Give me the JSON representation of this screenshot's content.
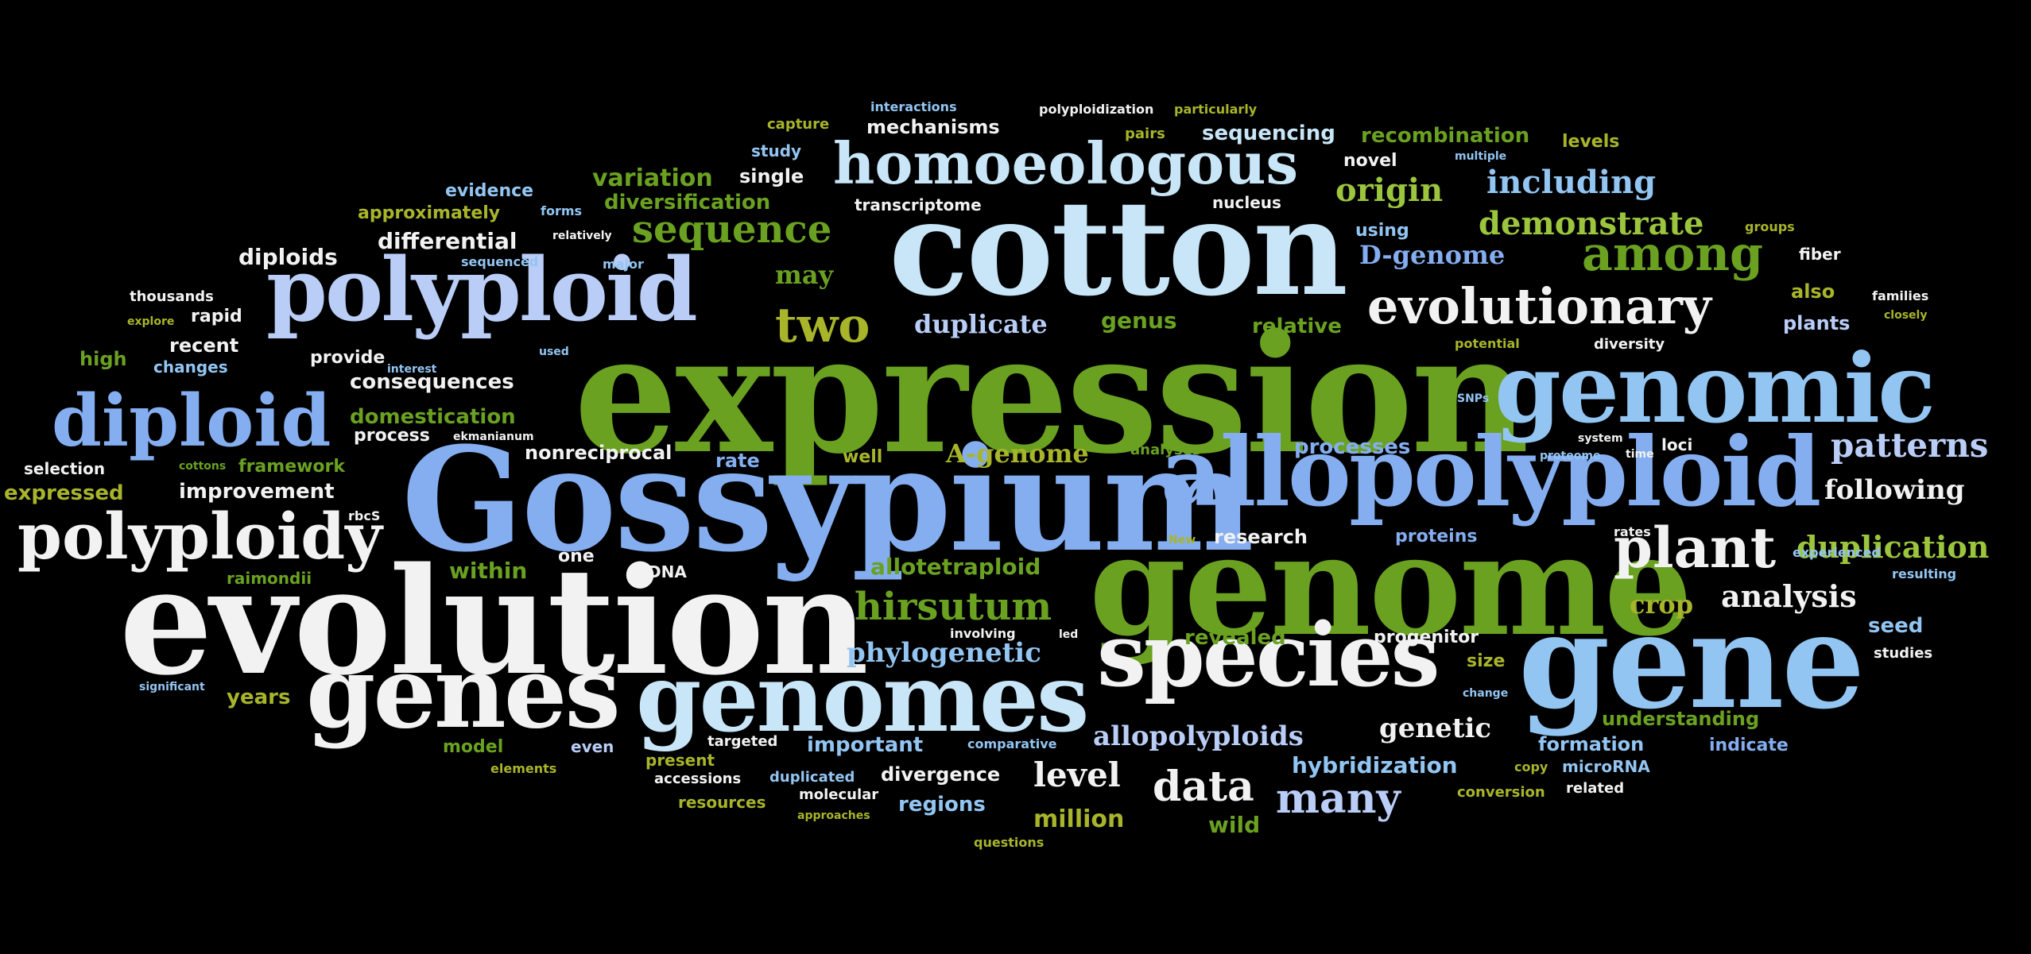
{
  "words": [
    {
      "text": "expression",
      "size": 205,
      "color": "green"
    },
    {
      "text": "Gossypium",
      "size": 180,
      "color": "blue"
    },
    {
      "text": "evolution",
      "size": 185,
      "color": "white"
    },
    {
      "text": "genome",
      "size": 175,
      "color": "green"
    },
    {
      "text": "cotton",
      "size": 165,
      "color": "cyan"
    },
    {
      "text": "gene",
      "size": 165,
      "color": "lblue"
    },
    {
      "text": "genomic",
      "size": 120,
      "color": "lblue"
    },
    {
      "text": "allopolyploid",
      "size": 120,
      "color": "blue"
    },
    {
      "text": "polyploid",
      "size": 110,
      "color": "peri"
    },
    {
      "text": "genes",
      "size": 125,
      "color": "white"
    },
    {
      "text": "genomes",
      "size": 118,
      "color": "cyan"
    },
    {
      "text": "species",
      "size": 110,
      "color": "white"
    },
    {
      "text": "diploid",
      "size": 90,
      "color": "blue"
    },
    {
      "text": "polyploidy",
      "size": 80,
      "color": "white"
    },
    {
      "text": "homoeologous",
      "size": 72,
      "color": "cyan"
    },
    {
      "text": "evolutionary",
      "size": 62,
      "color": "white"
    },
    {
      "text": "plant",
      "size": 70,
      "color": "white"
    },
    {
      "text": "among",
      "size": 60,
      "color": "green"
    },
    {
      "text": "two",
      "size": 60,
      "color": "olive"
    },
    {
      "text": "hirsutum",
      "size": 48,
      "color": "green"
    },
    {
      "text": "sequence",
      "size": 48,
      "color": "green"
    },
    {
      "text": "data",
      "size": 52,
      "color": "white"
    },
    {
      "text": "many",
      "size": 52,
      "color": "peri"
    },
    {
      "text": "patterns",
      "size": 42,
      "color": "peri"
    },
    {
      "text": "including",
      "size": 40,
      "color": "lblue"
    },
    {
      "text": "demonstrate",
      "size": 40,
      "color": "lgreen"
    },
    {
      "text": "origin",
      "size": 40,
      "color": "lgreen"
    },
    {
      "text": "duplication",
      "size": 38,
      "color": "lgreen"
    },
    {
      "text": "following",
      "size": 34,
      "color": "white"
    },
    {
      "text": "analysis",
      "size": 38,
      "color": "white"
    },
    {
      "text": "phylogenetic",
      "size": 34,
      "color": "lblue"
    },
    {
      "text": "allopolyploids",
      "size": 34,
      "color": "peri"
    },
    {
      "text": "genetic",
      "size": 34,
      "color": "white"
    },
    {
      "text": "level",
      "size": 42,
      "color": "white"
    },
    {
      "text": "duplicate",
      "size": 32,
      "color": "peri"
    },
    {
      "text": "D-genome",
      "size": 32,
      "color": "blue"
    },
    {
      "text": "A-genome",
      "size": 32,
      "color": "olive"
    },
    {
      "text": "allotetraploid",
      "size": 28,
      "color": "green"
    },
    {
      "text": "within",
      "size": 28,
      "color": "green"
    },
    {
      "text": "million",
      "size": 30,
      "color": "olive"
    },
    {
      "text": "crop",
      "size": 32,
      "color": "olive"
    },
    {
      "text": "may",
      "size": 32,
      "color": "green"
    },
    {
      "text": "genus",
      "size": 28,
      "color": "green"
    },
    {
      "text": "relative",
      "size": 26,
      "color": "green"
    },
    {
      "text": "variation",
      "size": 30,
      "color": "green"
    },
    {
      "text": "diversification",
      "size": 26,
      "color": "green"
    },
    {
      "text": "differential",
      "size": 28,
      "color": "white"
    },
    {
      "text": "diploids",
      "size": 28,
      "color": "white"
    },
    {
      "text": "mechanisms",
      "size": 24,
      "color": "white"
    },
    {
      "text": "sequencing",
      "size": 26,
      "color": "cyan"
    },
    {
      "text": "recombination",
      "size": 26,
      "color": "green"
    },
    {
      "text": "levels",
      "size": 22,
      "color": "olive"
    },
    {
      "text": "novel",
      "size": 22,
      "color": "white"
    },
    {
      "text": "nucleus",
      "size": 20,
      "color": "white"
    },
    {
      "text": "transcriptome",
      "size": 20,
      "color": "white"
    },
    {
      "text": "single",
      "size": 24,
      "color": "white"
    },
    {
      "text": "study",
      "size": 20,
      "color": "lblue"
    },
    {
      "text": "capture",
      "size": 18,
      "color": "olive"
    },
    {
      "text": "interactions",
      "size": 16,
      "color": "lblue"
    },
    {
      "text": "polyploidization",
      "size": 16,
      "color": "white"
    },
    {
      "text": "particularly",
      "size": 16,
      "color": "olive"
    },
    {
      "text": "pairs",
      "size": 18,
      "color": "olive"
    },
    {
      "text": "multiple",
      "size": 14,
      "color": "lblue"
    },
    {
      "text": "evidence",
      "size": 22,
      "color": "lblue"
    },
    {
      "text": "approximately",
      "size": 22,
      "color": "olive"
    },
    {
      "text": "forms",
      "size": 16,
      "color": "lblue"
    },
    {
      "text": "relatively",
      "size": 14,
      "color": "white"
    },
    {
      "text": "sequenced",
      "size": 16,
      "color": "lblue"
    },
    {
      "text": "major",
      "size": 16,
      "color": "lblue"
    },
    {
      "text": "using",
      "size": 22,
      "color": "lblue"
    },
    {
      "text": "groups",
      "size": 16,
      "color": "olive"
    },
    {
      "text": "fiber",
      "size": 20,
      "color": "white"
    },
    {
      "text": "also",
      "size": 24,
      "color": "olive"
    },
    {
      "text": "families",
      "size": 16,
      "color": "white"
    },
    {
      "text": "closely",
      "size": 14,
      "color": "olive"
    },
    {
      "text": "plants",
      "size": 24,
      "color": "peri"
    },
    {
      "text": "diversity",
      "size": 18,
      "color": "white"
    },
    {
      "text": "potential",
      "size": 16,
      "color": "olive"
    },
    {
      "text": "thousands",
      "size": 18,
      "color": "white"
    },
    {
      "text": "explore",
      "size": 14,
      "color": "olive"
    },
    {
      "text": "rapid",
      "size": 22,
      "color": "white"
    },
    {
      "text": "recent",
      "size": 24,
      "color": "white"
    },
    {
      "text": "high",
      "size": 24,
      "color": "green"
    },
    {
      "text": "changes",
      "size": 20,
      "color": "lblue"
    },
    {
      "text": "provide",
      "size": 22,
      "color": "white"
    },
    {
      "text": "used",
      "size": 14,
      "color": "lblue"
    },
    {
      "text": "consequences",
      "size": 26,
      "color": "white"
    },
    {
      "text": "domestication",
      "size": 26,
      "color": "green"
    },
    {
      "text": "process",
      "size": 22,
      "color": "white"
    },
    {
      "text": "ekmanianum",
      "size": 14,
      "color": "white"
    },
    {
      "text": "selection",
      "size": 20,
      "color": "white"
    },
    {
      "text": "cottons",
      "size": 14,
      "color": "green"
    },
    {
      "text": "framework",
      "size": 22,
      "color": "green"
    },
    {
      "text": "expressed",
      "size": 26,
      "color": "olive"
    },
    {
      "text": "improvement",
      "size": 26,
      "color": "white"
    },
    {
      "text": "nonreciprocal",
      "size": 24,
      "color": "white"
    },
    {
      "text": "rate",
      "size": 24,
      "color": "blue"
    },
    {
      "text": "well",
      "size": 22,
      "color": "olive"
    },
    {
      "text": "analyses",
      "size": 18,
      "color": "green"
    },
    {
      "text": "processes",
      "size": 26,
      "color": "blue"
    },
    {
      "text": "system",
      "size": 14,
      "color": "white"
    },
    {
      "text": "proteome",
      "size": 14,
      "color": "lblue"
    },
    {
      "text": "time",
      "size": 14,
      "color": "white"
    },
    {
      "text": "loci",
      "size": 20,
      "color": "white"
    },
    {
      "text": "SNPs",
      "size": 14,
      "color": "lblue"
    },
    {
      "text": "rbcS",
      "size": 16,
      "color": "white"
    },
    {
      "text": "research",
      "size": 24,
      "color": "white"
    },
    {
      "text": "proteins",
      "size": 22,
      "color": "blue"
    },
    {
      "text": "New",
      "size": 14,
      "color": "olive"
    },
    {
      "text": "rates",
      "size": 16,
      "color": "white"
    },
    {
      "text": "experienced",
      "size": 16,
      "color": "lblue"
    },
    {
      "text": "raimondii",
      "size": 20,
      "color": "green"
    },
    {
      "text": "one",
      "size": 22,
      "color": "white"
    },
    {
      "text": "DNA",
      "size": 20,
      "color": "white"
    },
    {
      "text": "resulting",
      "size": 16,
      "color": "lblue"
    },
    {
      "text": "seed",
      "size": 26,
      "color": "lblue"
    },
    {
      "text": "revealed",
      "size": 26,
      "color": "green"
    },
    {
      "text": "progenitor",
      "size": 22,
      "color": "white"
    },
    {
      "text": "involving",
      "size": 16,
      "color": "white"
    },
    {
      "text": "led",
      "size": 14,
      "color": "white"
    },
    {
      "text": "size",
      "size": 22,
      "color": "olive"
    },
    {
      "text": "studies",
      "size": 18,
      "color": "white"
    },
    {
      "text": "significant",
      "size": 14,
      "color": "lblue"
    },
    {
      "text": "years",
      "size": 26,
      "color": "olive"
    },
    {
      "text": "change",
      "size": 14,
      "color": "lblue"
    },
    {
      "text": "understanding",
      "size": 24,
      "color": "green"
    },
    {
      "text": "model",
      "size": 22,
      "color": "green"
    },
    {
      "text": "even",
      "size": 20,
      "color": "peri"
    },
    {
      "text": "targeted",
      "size": 18,
      "color": "white"
    },
    {
      "text": "important",
      "size": 26,
      "color": "lblue"
    },
    {
      "text": "comparative",
      "size": 16,
      "color": "lblue"
    },
    {
      "text": "formation",
      "size": 24,
      "color": "lblue"
    },
    {
      "text": "indicate",
      "size": 22,
      "color": "blue"
    },
    {
      "text": "elements",
      "size": 16,
      "color": "olive"
    },
    {
      "text": "present",
      "size": 20,
      "color": "olive"
    },
    {
      "text": "accessions",
      "size": 18,
      "color": "white"
    },
    {
      "text": "duplicated",
      "size": 18,
      "color": "lblue"
    },
    {
      "text": "divergence",
      "size": 24,
      "color": "white"
    },
    {
      "text": "hybridization",
      "size": 28,
      "color": "lblue"
    },
    {
      "text": "copy",
      "size": 16,
      "color": "olive"
    },
    {
      "text": "microRNA",
      "size": 20,
      "color": "lblue"
    },
    {
      "text": "resources",
      "size": 20,
      "color": "olive"
    },
    {
      "text": "molecular",
      "size": 18,
      "color": "white"
    },
    {
      "text": "regions",
      "size": 26,
      "color": "lblue"
    },
    {
      "text": "approaches",
      "size": 14,
      "color": "olive"
    },
    {
      "text": "conversion",
      "size": 18,
      "color": "olive"
    },
    {
      "text": "related",
      "size": 18,
      "color": "white"
    },
    {
      "text": "wild",
      "size": 28,
      "color": "green"
    },
    {
      "text": "questions",
      "size": 16,
      "color": "olive"
    },
    {
      "text": "interest",
      "size": 14,
      "color": "lblue"
    }
  ],
  "colors": {
    "white": "#f2f2f2",
    "cyan": "#c8e6f7",
    "lblue": "#92c5f2",
    "blue": "#84aef0",
    "peri": "#b9cdf7",
    "green": "#6aa121",
    "lgreen": "#9bc53d",
    "olive": "#a8b52a"
  }
}
